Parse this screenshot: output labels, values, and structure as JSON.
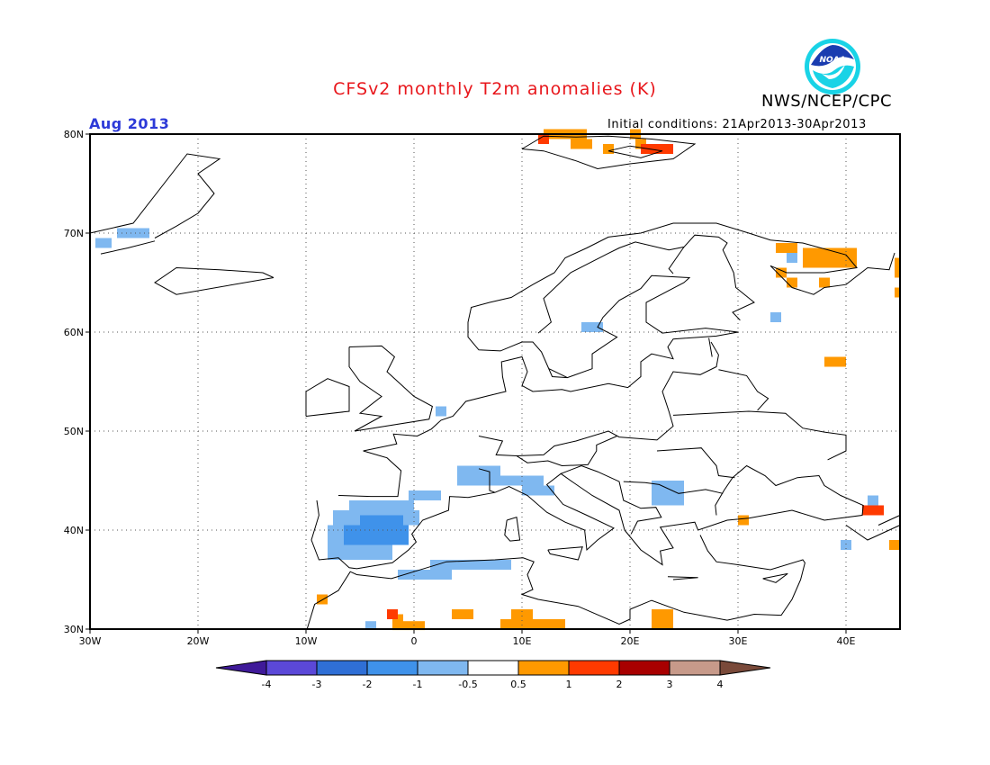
{
  "header": {
    "title": "CFSv2 monthly T2m anomalies (K)",
    "agency": "NWS/NCEP/CPC",
    "valid_month": "Aug 2013",
    "initial_conditions": "Initial conditions: 21Apr2013-30Apr2013",
    "logo_text": "NOAA"
  },
  "map": {
    "projection": "lat-lon",
    "lon_range": [
      -30,
      45
    ],
    "lat_range": [
      30,
      80
    ],
    "grid": true,
    "x_ticks": [
      {
        "lon": -30,
        "label": "30W"
      },
      {
        "lon": -20,
        "label": "20W"
      },
      {
        "lon": -10,
        "label": "10W"
      },
      {
        "lon": 0,
        "label": "0"
      },
      {
        "lon": 10,
        "label": "10E"
      },
      {
        "lon": 20,
        "label": "20E"
      },
      {
        "lon": 30,
        "label": "30E"
      },
      {
        "lon": 40,
        "label": "40E"
      }
    ],
    "y_ticks": [
      {
        "lat": 30,
        "label": "30N"
      },
      {
        "lat": 40,
        "label": "40N"
      },
      {
        "lat": 50,
        "label": "50N"
      },
      {
        "lat": 60,
        "label": "60N"
      },
      {
        "lat": 70,
        "label": "70N"
      },
      {
        "lat": 80,
        "label": "80N"
      }
    ]
  },
  "colorbar": {
    "colors": [
      "#3f1a99",
      "#5b48d8",
      "#2f6fd6",
      "#3f92ea",
      "#7fb8f0",
      "#ffffff",
      "#ff9900",
      "#ff3a00",
      "#a80000",
      "#c79a8a",
      "#7a4a3a"
    ],
    "labels": [
      "-4",
      "-3",
      "-2",
      "-1",
      "-0.5",
      "0.5",
      "1",
      "2",
      "3",
      "4"
    ]
  },
  "chart_data": {
    "type": "heatmap",
    "title": "CFSv2 monthly T2m anomalies (K)",
    "units": "K",
    "cells": [
      {
        "lon": -29.5,
        "lat": 68.5,
        "w": 1.5,
        "h": 1,
        "value": -0.7
      },
      {
        "lon": -27.5,
        "lat": 69.5,
        "w": 3,
        "h": 1,
        "value": -0.7
      },
      {
        "lon": 2,
        "lat": 51.5,
        "w": 1,
        "h": 1,
        "value": -0.7
      },
      {
        "lon": 15.5,
        "lat": 60,
        "w": 2,
        "h": 1,
        "value": -0.7
      },
      {
        "lon": 33,
        "lat": 61,
        "w": 1,
        "h": 1,
        "value": -0.7
      },
      {
        "lon": 34.5,
        "lat": 67,
        "w": 1,
        "h": 1,
        "value": -0.7
      },
      {
        "lon": -0.5,
        "lat": 43,
        "w": 3,
        "h": 1,
        "value": -0.7
      },
      {
        "lon": 4,
        "lat": 44.5,
        "w": 4,
        "h": 2,
        "value": -0.7
      },
      {
        "lon": 8,
        "lat": 44.5,
        "w": 4,
        "h": 1,
        "value": -0.7
      },
      {
        "lon": 10,
        "lat": 43.5,
        "w": 3,
        "h": 1,
        "value": -0.7
      },
      {
        "lon": 22,
        "lat": 44,
        "w": 3,
        "h": 1,
        "value": -0.7
      },
      {
        "lon": 22,
        "lat": 42.5,
        "w": 3,
        "h": 1.5,
        "value": -0.7
      },
      {
        "lon": -6,
        "lat": 42,
        "w": 6,
        "h": 1,
        "value": -0.7
      },
      {
        "lon": -7.5,
        "lat": 40.5,
        "w": 8,
        "h": 1.5,
        "value": -0.7
      },
      {
        "lon": -8,
        "lat": 37,
        "w": 6,
        "h": 3.5,
        "value": -0.7
      },
      {
        "lon": -1.5,
        "lat": 35,
        "w": 5,
        "h": 1,
        "value": -0.7
      },
      {
        "lon": 1.5,
        "lat": 36,
        "w": 5,
        "h": 1,
        "value": -0.7
      },
      {
        "lon": 6,
        "lat": 36,
        "w": 3,
        "h": 1,
        "value": -0.7
      },
      {
        "lon": -4.5,
        "lat": 30,
        "w": 1,
        "h": 0.8,
        "value": -0.7
      },
      {
        "lon": 39.5,
        "lat": 38,
        "w": 1,
        "h": 1,
        "value": -0.7
      },
      {
        "lon": 42,
        "lat": 42.5,
        "w": 1,
        "h": 1,
        "value": -0.7
      },
      {
        "lon": -6.5,
        "lat": 38.5,
        "w": 6,
        "h": 2,
        "value": -1.5
      },
      {
        "lon": -5,
        "lat": 40.5,
        "w": 2,
        "h": 1,
        "value": -1.5
      },
      {
        "lon": -3,
        "lat": 40.5,
        "w": 2,
        "h": 1,
        "value": -1.5
      },
      {
        "lon": 12,
        "lat": 79.5,
        "w": 4,
        "h": 1,
        "value": 0.7
      },
      {
        "lon": 14.5,
        "lat": 78.5,
        "w": 2,
        "h": 1,
        "value": 0.7
      },
      {
        "lon": 17.5,
        "lat": 78,
        "w": 1,
        "h": 1,
        "value": 0.7
      },
      {
        "lon": 20,
        "lat": 79.5,
        "w": 1,
        "h": 1,
        "value": 0.7
      },
      {
        "lon": 20.5,
        "lat": 78.5,
        "w": 1,
        "h": 1,
        "value": 0.7
      },
      {
        "lon": 33.5,
        "lat": 68,
        "w": 2,
        "h": 1,
        "value": 0.7
      },
      {
        "lon": 36,
        "lat": 66.5,
        "w": 5,
        "h": 2,
        "value": 0.7
      },
      {
        "lon": 33.5,
        "lat": 65.5,
        "w": 1,
        "h": 1,
        "value": 0.7
      },
      {
        "lon": 34.5,
        "lat": 64.5,
        "w": 1,
        "h": 1,
        "value": 0.7
      },
      {
        "lon": 37.5,
        "lat": 64.5,
        "w": 1,
        "h": 1,
        "value": 0.7
      },
      {
        "lon": 38,
        "lat": 56.5,
        "w": 2,
        "h": 1,
        "value": 0.7
      },
      {
        "lon": 44.5,
        "lat": 65.5,
        "w": 0.5,
        "h": 2,
        "value": 0.7
      },
      {
        "lon": 44.5,
        "lat": 63.5,
        "w": 0.5,
        "h": 1,
        "value": 0.7
      },
      {
        "lon": 30,
        "lat": 40.5,
        "w": 1,
        "h": 1,
        "value": 0.7
      },
      {
        "lon": 44,
        "lat": 38,
        "w": 1,
        "h": 1,
        "value": 0.7
      },
      {
        "lon": -9,
        "lat": 32.5,
        "w": 1,
        "h": 1,
        "value": 0.7
      },
      {
        "lon": -2,
        "lat": 30.5,
        "w": 1,
        "h": 1,
        "value": 0.7
      },
      {
        "lon": -2,
        "lat": 29.9,
        "w": 3,
        "h": 0.9,
        "value": 0.7
      },
      {
        "lon": 3.5,
        "lat": 31,
        "w": 2,
        "h": 1,
        "value": 0.7
      },
      {
        "lon": 8,
        "lat": 30,
        "w": 6,
        "h": 1,
        "value": 0.7
      },
      {
        "lon": 9,
        "lat": 31,
        "w": 2,
        "h": 1,
        "value": 0.7
      },
      {
        "lon": 22,
        "lat": 30,
        "w": 2,
        "h": 2,
        "value": 0.7
      },
      {
        "lon": 11.5,
        "lat": 79,
        "w": 1,
        "h": 1,
        "value": 1.5
      },
      {
        "lon": 21,
        "lat": 78,
        "w": 3,
        "h": 1,
        "value": 1.5
      },
      {
        "lon": 41.5,
        "lat": 41.5,
        "w": 2,
        "h": 1,
        "value": 1.5
      },
      {
        "lon": -2.5,
        "lat": 31,
        "w": 1,
        "h": 1,
        "value": 1.5
      }
    ]
  }
}
